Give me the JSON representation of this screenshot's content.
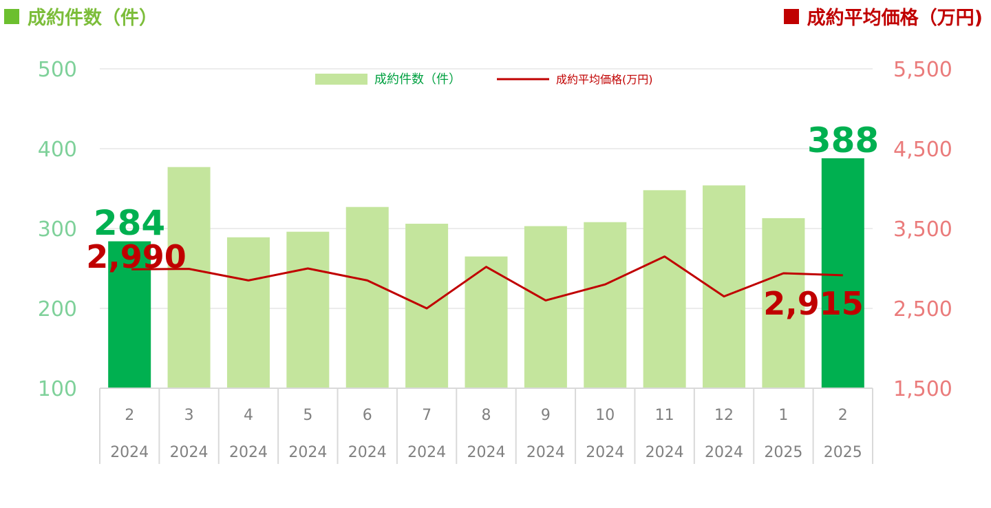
{
  "header": {
    "left_title": "成約件数（件）",
    "right_title": "成約平均価格（万円)"
  },
  "legend": {
    "bar_label": "成約件数（件）",
    "line_label": "成約平均価格(万円)"
  },
  "colors": {
    "bar_light": "#c4e59d",
    "bar_highlight": "#00b050",
    "line": "#c00000",
    "grid": "#d9d9d9"
  },
  "chart_data": {
    "type": "bar",
    "categories": [
      "2",
      "3",
      "4",
      "5",
      "6",
      "7",
      "8",
      "9",
      "10",
      "11",
      "12",
      "1",
      "2"
    ],
    "years": [
      "2024",
      "2024",
      "2024",
      "2024",
      "2024",
      "2024",
      "2024",
      "2024",
      "2024",
      "2024",
      "2024",
      "2025",
      "2025"
    ],
    "series": [
      {
        "name": "成約件数（件）",
        "type": "bar",
        "axis": "left",
        "values": [
          284,
          377,
          289,
          296,
          327,
          306,
          265,
          303,
          308,
          348,
          354,
          313,
          388
        ],
        "highlight_index": [
          0,
          12
        ]
      },
      {
        "name": "成約平均価格(万円)",
        "type": "line",
        "axis": "right",
        "values": [
          2990,
          2995,
          2850,
          3000,
          2850,
          2500,
          3020,
          2600,
          2800,
          3150,
          2650,
          2940,
          2915
        ]
      }
    ],
    "y_left": {
      "ylim": [
        100,
        500
      ],
      "ticks": [
        "100",
        "200",
        "300",
        "400",
        "500"
      ]
    },
    "y_right": {
      "ylim": [
        1500,
        5500
      ],
      "ticks": [
        "1,500",
        "2,500",
        "3,500",
        "4,500",
        "5,500"
      ]
    },
    "annotations": {
      "first_count": "284",
      "last_count": "388",
      "first_price": "2,990",
      "last_price": "2,915"
    },
    "grid": true,
    "legend_position": "top-center"
  }
}
